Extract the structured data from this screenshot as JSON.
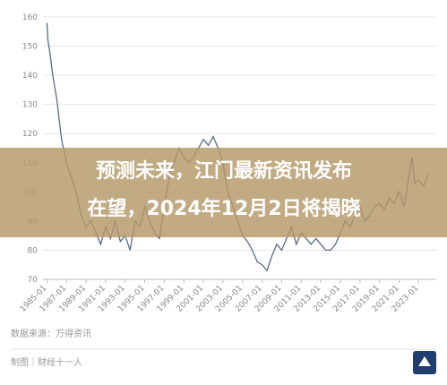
{
  "chart_data": {
    "type": "line",
    "x": [
      1985.0,
      1985.1,
      1985.3,
      1985.6,
      1986.0,
      1986.5,
      1987.0,
      1987.5,
      1988.0,
      1988.5,
      1989.0,
      1989.5,
      1990.0,
      1990.5,
      1991.0,
      1991.5,
      1992.0,
      1992.5,
      1993.0,
      1993.5,
      1994.0,
      1994.5,
      1995.0,
      1995.5,
      1996.0,
      1996.5,
      1997.0,
      1997.5,
      1998.0,
      1998.5,
      1999.0,
      1999.5,
      2000.0,
      2000.5,
      2001.0,
      2001.5,
      2002.0,
      2002.5,
      2003.0,
      2003.5,
      2004.0,
      2004.5,
      2005.0,
      2005.5,
      2006.0,
      2006.5,
      2007.0,
      2007.5,
      2008.0,
      2008.5,
      2009.0,
      2009.5,
      2010.0,
      2010.5,
      2011.0,
      2011.5,
      2012.0,
      2012.5,
      2013.0,
      2013.5,
      2014.0,
      2014.5,
      2015.0,
      2015.5,
      2016.0,
      2016.5,
      2017.0,
      2017.5,
      2018.0,
      2018.5,
      2019.0,
      2019.5,
      2020.0,
      2020.5,
      2021.0,
      2021.5,
      2022.0,
      2022.3,
      2022.6,
      2023.0,
      2023.5,
      2024.0
    ],
    "values": [
      158,
      152,
      148,
      140,
      132,
      118,
      110,
      105,
      100,
      92,
      88,
      90,
      86,
      82,
      88,
      84,
      90,
      83,
      85,
      80,
      90,
      88,
      95,
      90,
      86,
      84,
      95,
      105,
      110,
      115,
      112,
      110,
      112,
      115,
      118,
      116,
      119,
      115,
      110,
      100,
      95,
      90,
      85,
      83,
      80,
      76,
      75,
      73,
      78,
      82,
      80,
      84,
      88,
      82,
      86,
      84,
      82,
      84,
      82,
      80,
      80,
      82,
      86,
      90,
      88,
      92,
      95,
      90,
      92,
      95,
      96,
      94,
      98,
      96,
      100,
      95,
      105,
      112,
      103,
      104,
      102,
      106
    ],
    "color": "#5b6b82",
    "xlim": [
      1984.6,
      2024.8
    ],
    "xticks": [
      {
        "value": 1985,
        "label": "1985-01"
      },
      {
        "value": 1987,
        "label": "1987-01"
      },
      {
        "value": 1989,
        "label": "1989-01"
      },
      {
        "value": 1991,
        "label": "1991-01"
      },
      {
        "value": 1993,
        "label": "1993-01"
      },
      {
        "value": 1995,
        "label": "1995-01"
      },
      {
        "value": 1997,
        "label": "1997-01"
      },
      {
        "value": 1999,
        "label": "1999-01"
      },
      {
        "value": 2001,
        "label": "2001-01"
      },
      {
        "value": 2003,
        "label": "2003-01"
      },
      {
        "value": 2005,
        "label": "2005-01"
      },
      {
        "value": 2007,
        "label": "2007-01"
      },
      {
        "value": 2009,
        "label": "2009-01"
      },
      {
        "value": 2011,
        "label": "2011-01"
      },
      {
        "value": 2013,
        "label": "2013-01"
      },
      {
        "value": 2015,
        "label": "2015-01"
      },
      {
        "value": 2017,
        "label": "2017-01"
      },
      {
        "value": 2019,
        "label": "2019-01"
      },
      {
        "value": 2021,
        "label": "2021-01"
      },
      {
        "value": 2023,
        "label": "2023-01"
      }
    ],
    "ylim": [
      70,
      160
    ],
    "yticks": [
      70,
      80,
      90,
      100,
      110,
      120,
      130,
      140,
      150,
      160
    ],
    "grid": true
  },
  "banner": {
    "lines": [
      "预测未来，江门最新资讯发布",
      "在望，2024年12月2日将揭晓"
    ]
  },
  "footer": {
    "source": "数据来源：万得资讯",
    "credit": "制图｜财经十一人"
  }
}
